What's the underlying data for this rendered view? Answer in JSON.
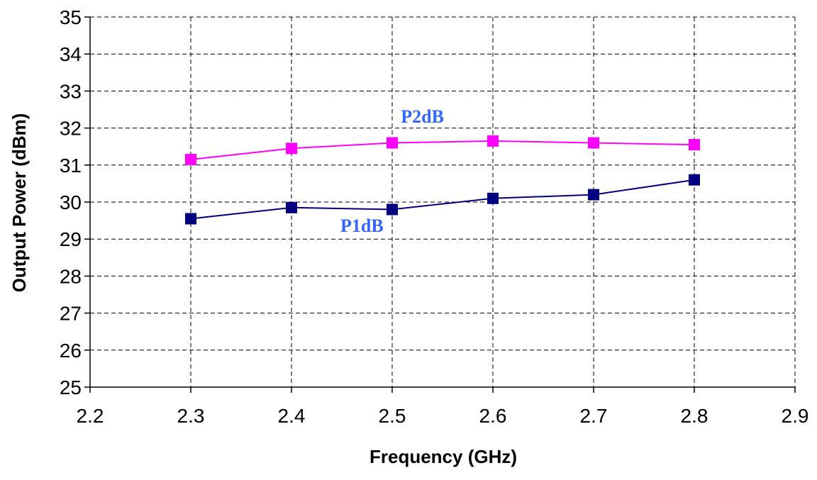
{
  "chart_data": {
    "type": "line",
    "title": "",
    "xlabel": "Frequency (GHz)",
    "ylabel": "Output Power (dBm)",
    "xlim": [
      2.2,
      2.9
    ],
    "ylim": [
      25,
      35
    ],
    "xticks": [
      "2.2",
      "2.3",
      "2.4",
      "2.5",
      "2.6",
      "2.7",
      "2.8",
      "2.9"
    ],
    "yticks": [
      "25",
      "26",
      "27",
      "28",
      "29",
      "30",
      "31",
      "32",
      "33",
      "34",
      "35"
    ],
    "grid": true,
    "legend": "none",
    "x": [
      2.3,
      2.4,
      2.5,
      2.6,
      2.7,
      2.8
    ],
    "series": [
      {
        "name": "P2dB",
        "values": [
          31.15,
          31.45,
          31.6,
          31.65,
          31.6,
          31.55
        ],
        "color": "#ff00ff",
        "label_color": "#3366ff",
        "marker": "square"
      },
      {
        "name": "P1dB",
        "values": [
          29.55,
          29.85,
          29.8,
          30.1,
          30.2,
          30.6
        ],
        "color": "#000080",
        "label_color": "#3366ff",
        "marker": "square"
      }
    ],
    "annotations": [
      {
        "text": "P2dB",
        "x": 2.53,
        "y": 32.15,
        "series": 0
      },
      {
        "text": "P1dB",
        "x": 2.47,
        "y": 29.2,
        "series": 1
      }
    ]
  }
}
